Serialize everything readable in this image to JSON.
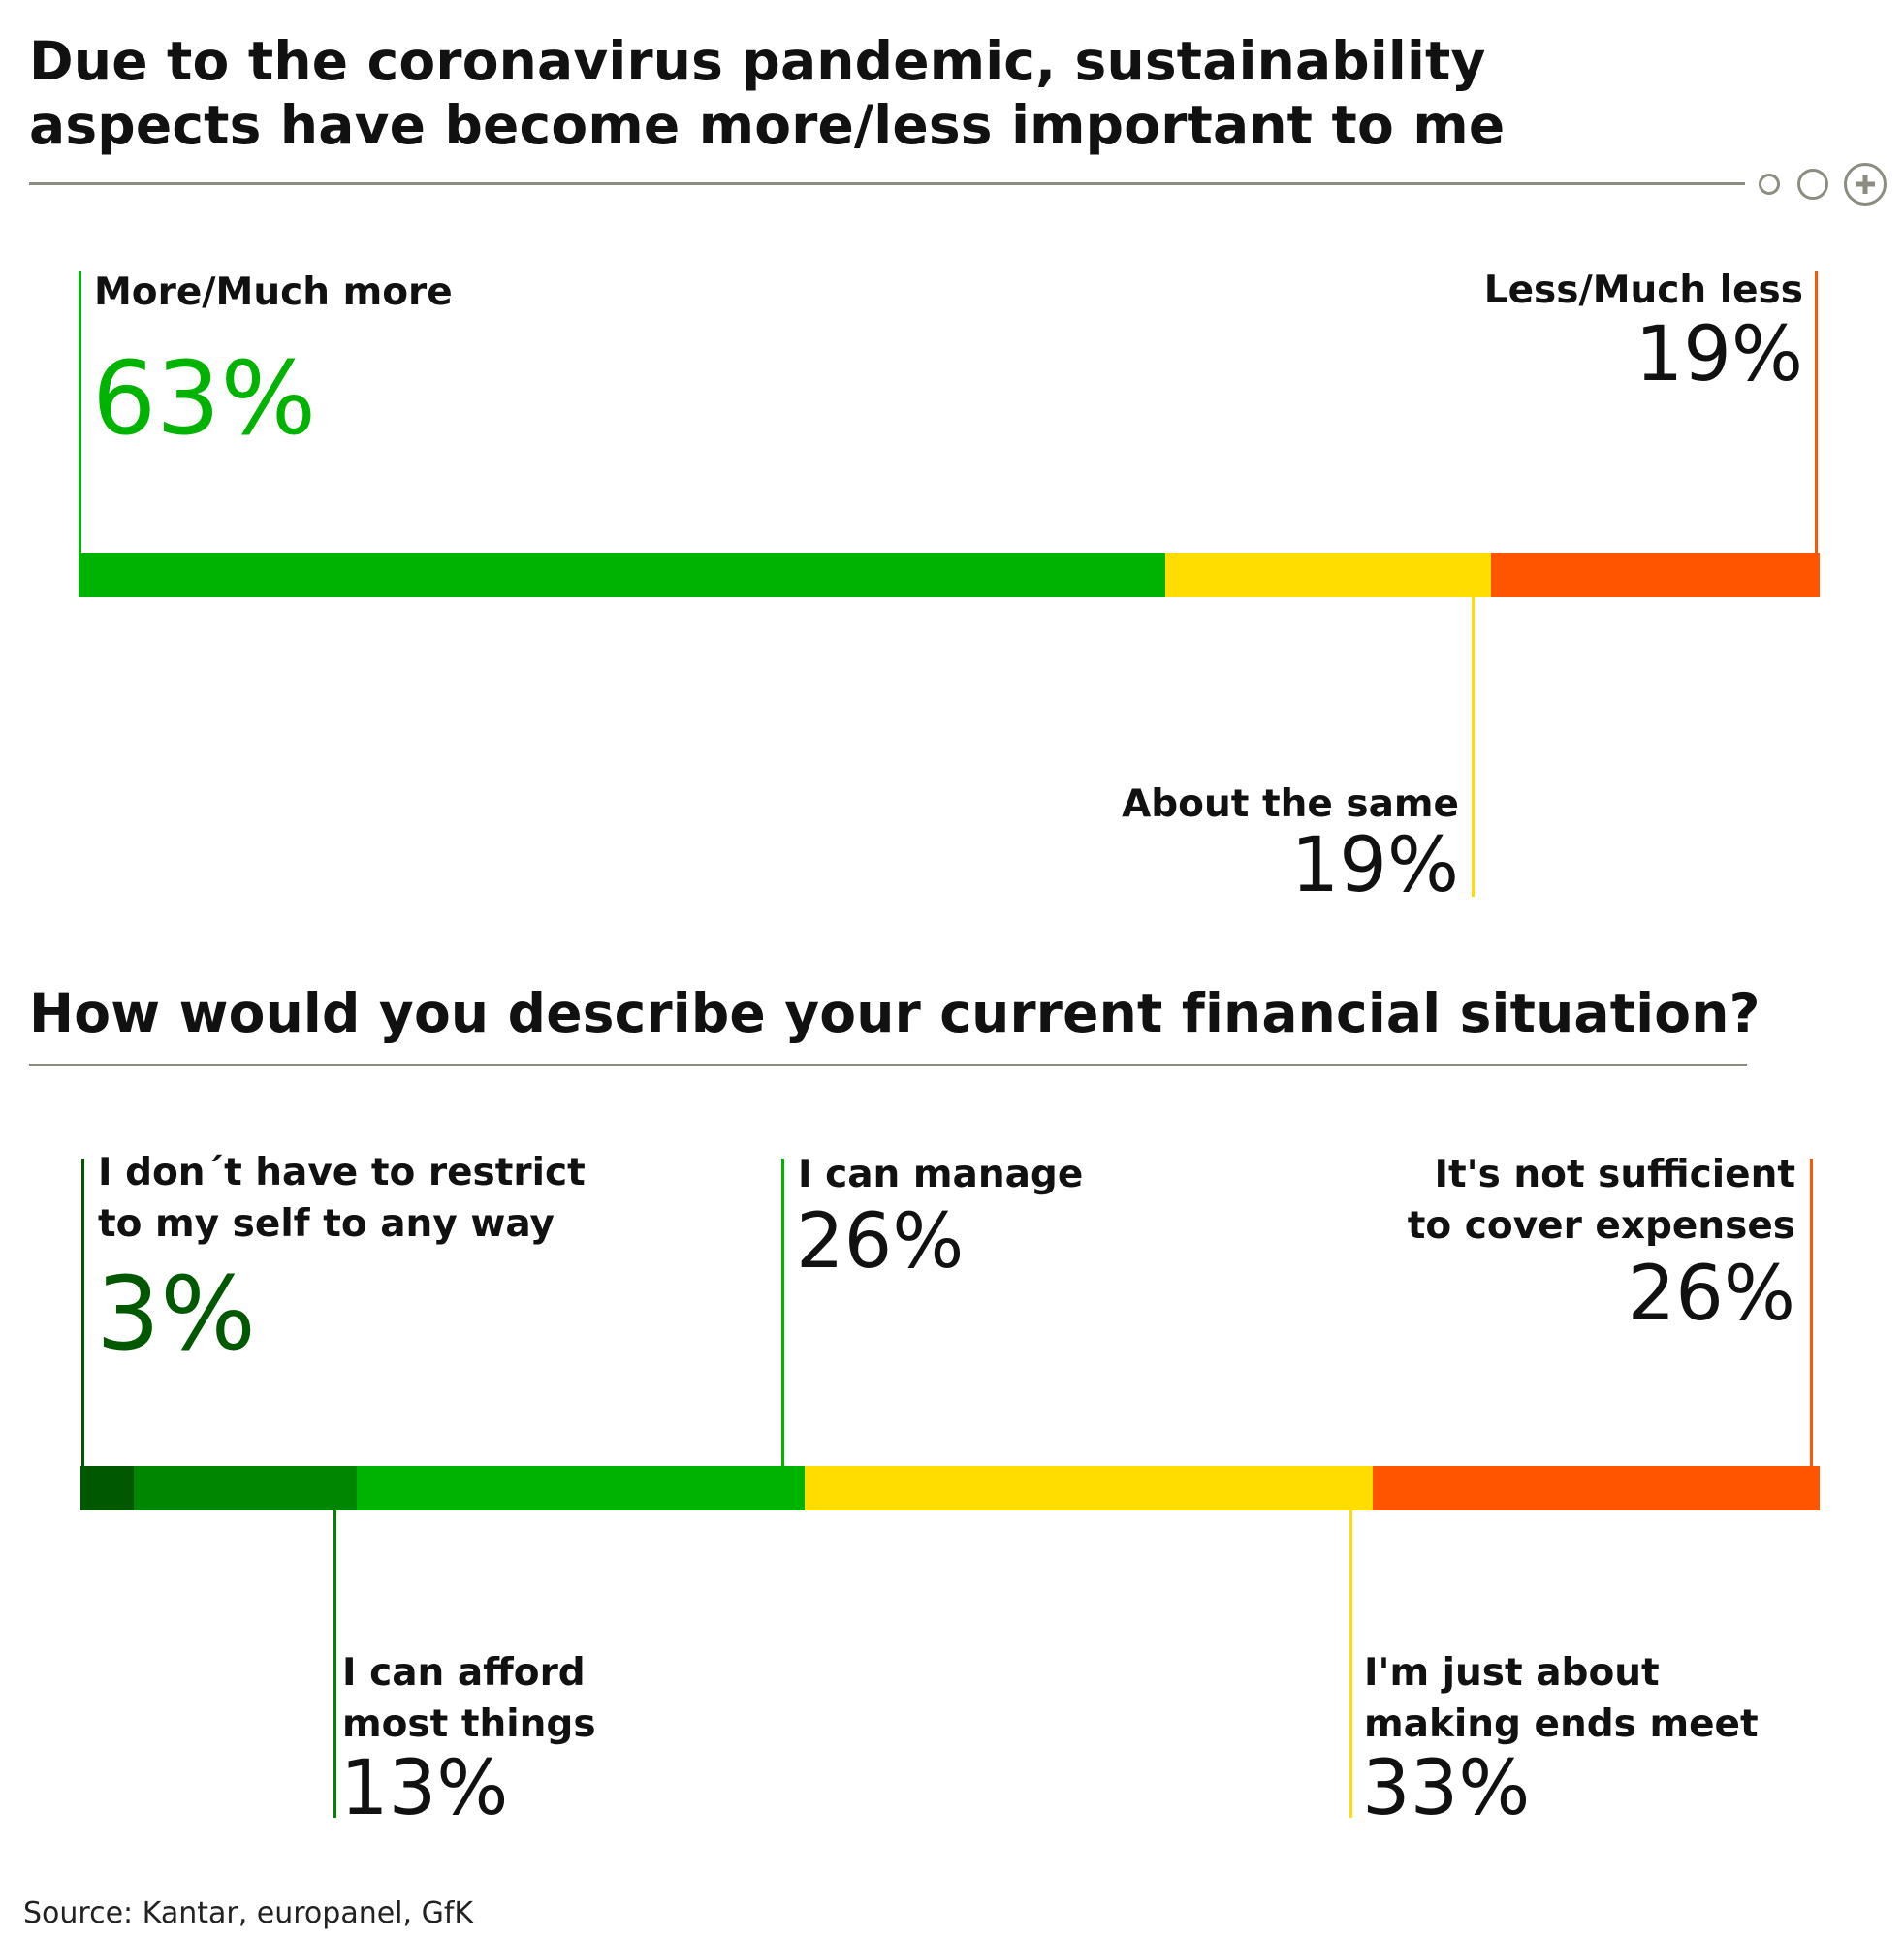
{
  "chart_data": [
    {
      "type": "bar",
      "title": "Due to the coronavirus pandemic, sustainability aspects have become more/less important to me",
      "categories": [
        "More/Much more",
        "About the same",
        "Less/Much less"
      ],
      "values": [
        63,
        19,
        19
      ],
      "value_labels": [
        "63%",
        "19%",
        "19%"
      ],
      "colors": [
        "#00b300",
        "#ffdd00",
        "#ff5500"
      ],
      "orientation": "horizontal-stacked",
      "grid": false
    },
    {
      "type": "bar",
      "title": "How would you describe your current financial situation?",
      "categories": [
        "I don´t have to restrict to my self to any way",
        "I can afford most things",
        "I can manage",
        "I'm just about making ends meet",
        "It's not sufficient to cover expenses"
      ],
      "values": [
        3,
        13,
        26,
        33,
        26
      ],
      "value_labels": [
        "3%",
        "13%",
        "26%",
        "33%",
        "26%"
      ],
      "colors": [
        "#005800",
        "#008600",
        "#00b300",
        "#ffdd00",
        "#ff5500"
      ],
      "orientation": "horizontal-stacked",
      "grid": false
    }
  ],
  "chart1": {
    "title_line1": "Due to the coronavirus pandemic, sustainability",
    "title_line2": "aspects have become more/less important to me",
    "more_label": "More/Much more",
    "more_value": "63%",
    "less_label": "Less/Much less",
    "less_value": "19%",
    "same_label": "About the same",
    "same_value": "19%"
  },
  "chart2": {
    "title": "How would you describe your current financial situation?",
    "no_restrict_line1": "I don´t have to restrict",
    "no_restrict_line2": "to my self to any way",
    "no_restrict_value": "3%",
    "manage_label": "I can manage",
    "manage_value": "26%",
    "not_sufficient_line1": "It's not sufficient",
    "not_sufficient_line2": "to cover expenses",
    "not_sufficient_value": "26%",
    "afford_line1": "I can afford",
    "afford_line2": "most things",
    "afford_value": "13%",
    "ends_meet_line1": "I'm just about",
    "ends_meet_line2": "making ends meet",
    "ends_meet_value": "33%"
  },
  "source": "Source: Kantar, europanel, GfK",
  "colors": {
    "green": "#00b300",
    "mid_green": "#008600",
    "dark_green": "#005800",
    "yellow": "#ffdd00",
    "orange": "#ff5500",
    "text": "#111111",
    "rule": "#8c8c80"
  },
  "controls": [
    "small-circle-icon",
    "circle-icon",
    "plus-circle-icon"
  ]
}
